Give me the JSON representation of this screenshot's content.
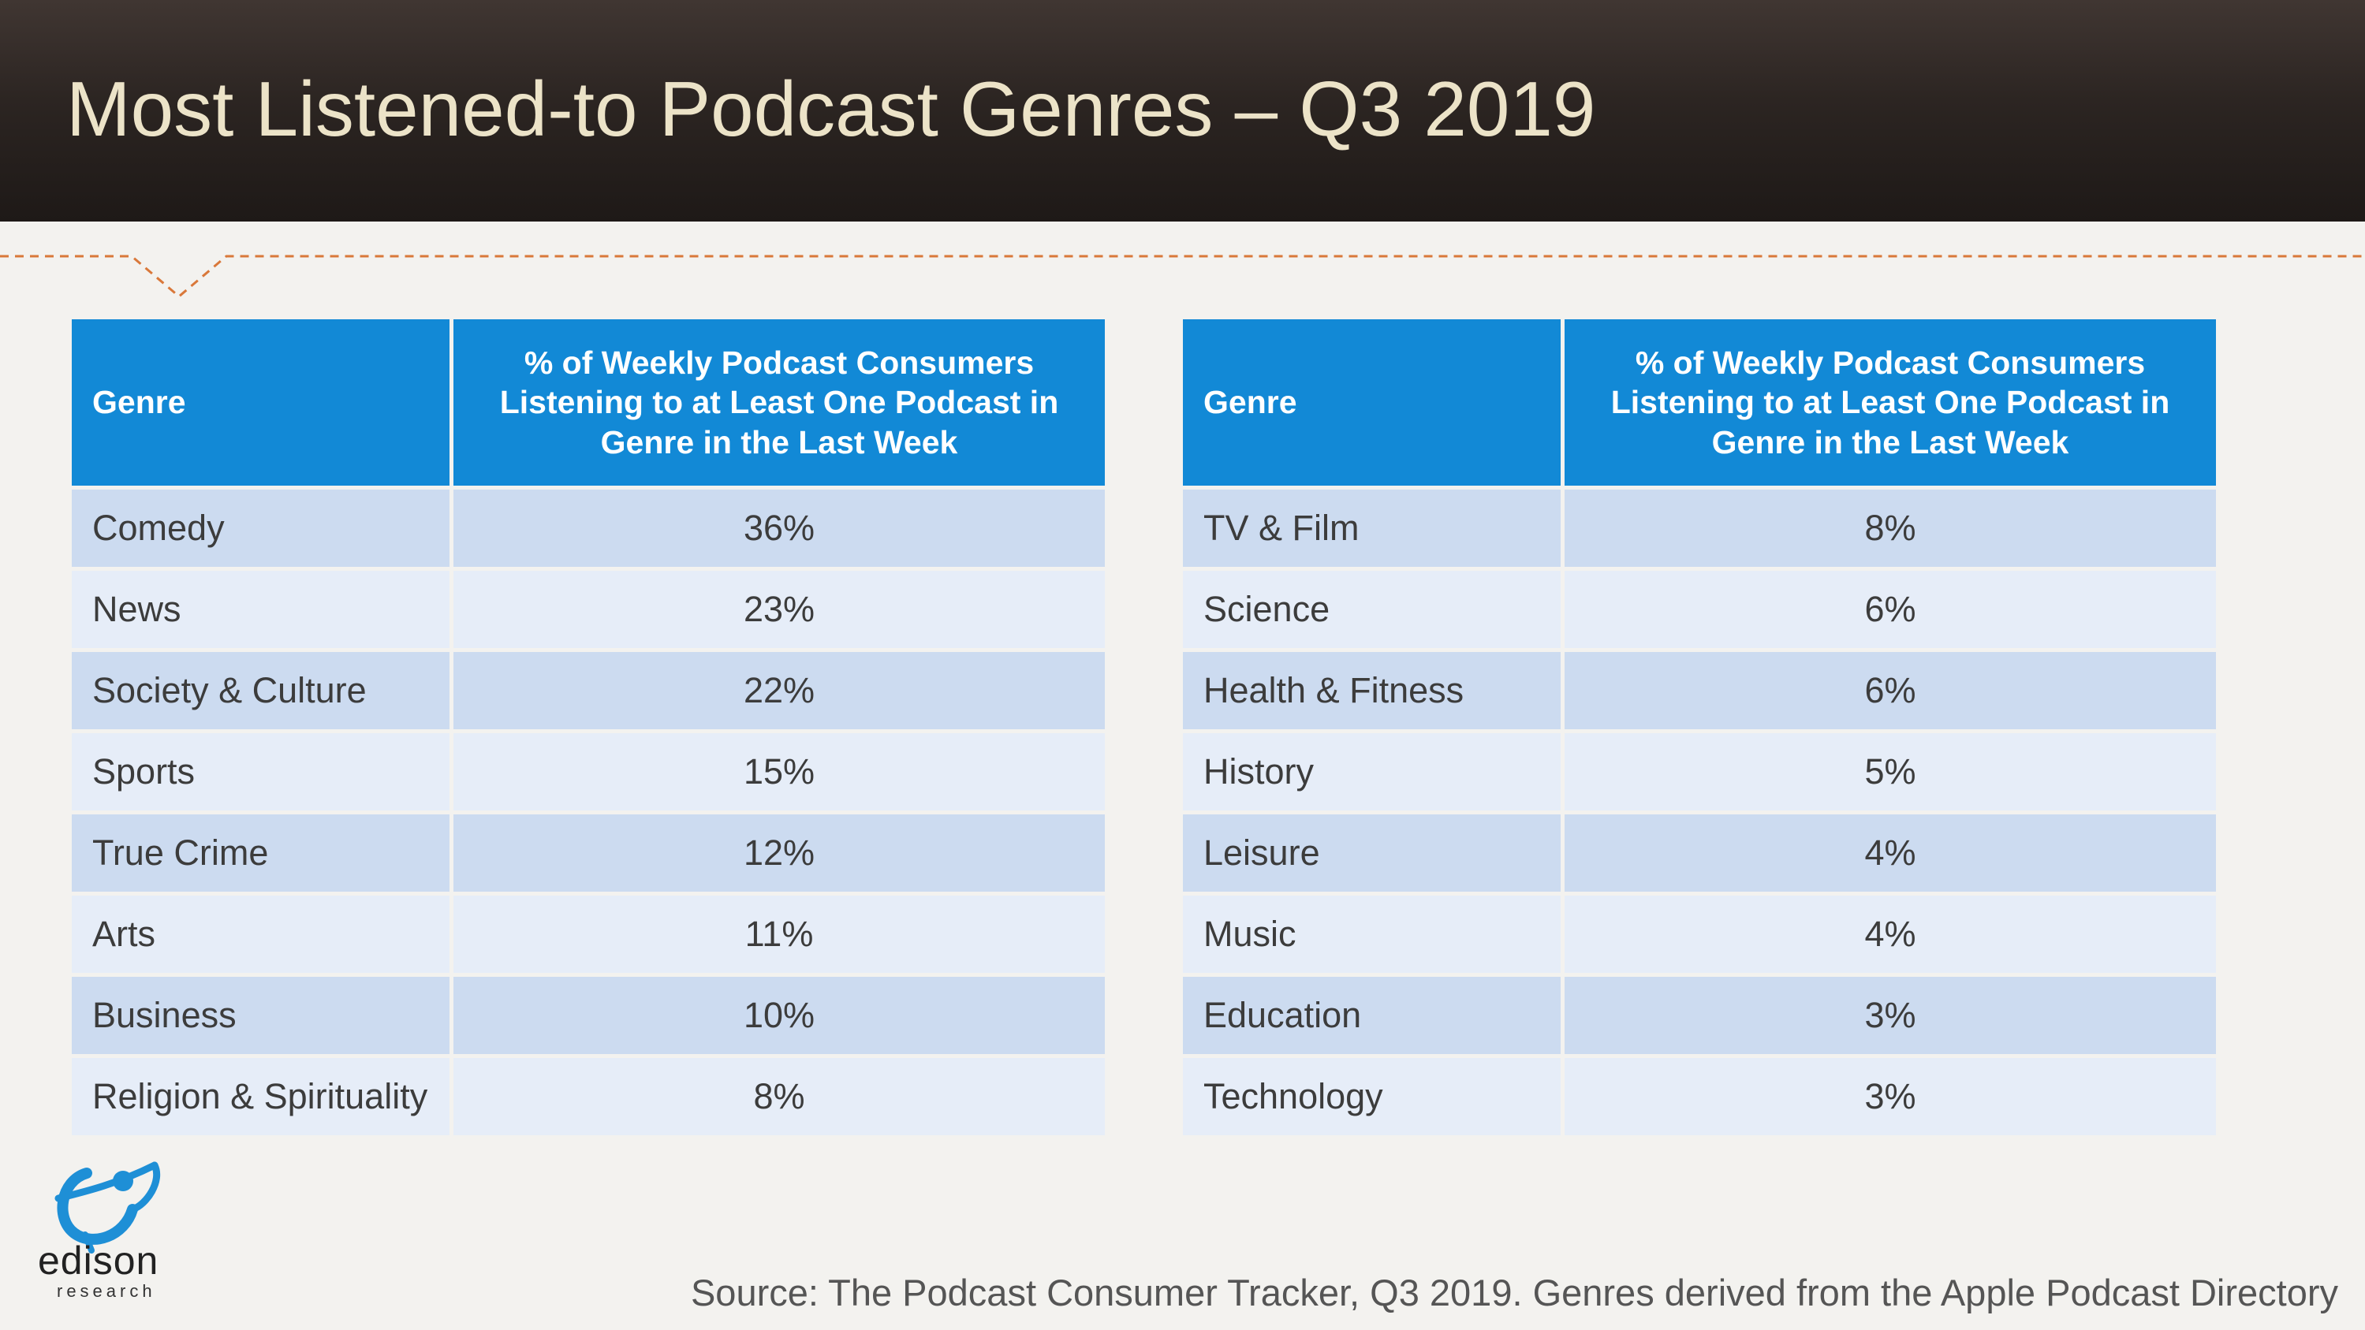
{
  "title": "Most Listened-to Podcast Genres – Q3 2019",
  "colors": {
    "header_blue": "#1289d6",
    "row_dark": "#ccdbf0",
    "row_light": "#e6edf8",
    "accent_orange": "#d9783a"
  },
  "tables": [
    {
      "headers": {
        "genre": "Genre",
        "percent": "% of Weekly Podcast Consumers Listening to at Least One Podcast in Genre in the Last Week"
      },
      "rows": [
        {
          "genre": "Comedy",
          "percent": "36%"
        },
        {
          "genre": "News",
          "percent": "23%"
        },
        {
          "genre": "Society & Culture",
          "percent": "22%"
        },
        {
          "genre": "Sports",
          "percent": "15%"
        },
        {
          "genre": "True Crime",
          "percent": "12%"
        },
        {
          "genre": "Arts",
          "percent": "11%"
        },
        {
          "genre": "Business",
          "percent": "10%"
        },
        {
          "genre": "Religion & Spirituality",
          "percent": "8%"
        }
      ]
    },
    {
      "headers": {
        "genre": "Genre",
        "percent": "% of Weekly Podcast Consumers Listening to at Least One Podcast in Genre in the Last Week"
      },
      "rows": [
        {
          "genre": "TV & Film",
          "percent": "8%"
        },
        {
          "genre": "Science",
          "percent": "6%"
        },
        {
          "genre": "Health & Fitness",
          "percent": "6%"
        },
        {
          "genre": "History",
          "percent": "5%"
        },
        {
          "genre": "Leisure",
          "percent": "4%"
        },
        {
          "genre": "Music",
          "percent": "4%"
        },
        {
          "genre": "Education",
          "percent": "3%"
        },
        {
          "genre": "Technology",
          "percent": "3%"
        }
      ]
    }
  ],
  "logo": {
    "name": "edison",
    "sub": "research",
    "icon": "edison-orbit-logo-icon"
  },
  "source": "Source: The Podcast Consumer Tracker, Q3 2019. Genres derived from the Apple Podcast Directory"
}
